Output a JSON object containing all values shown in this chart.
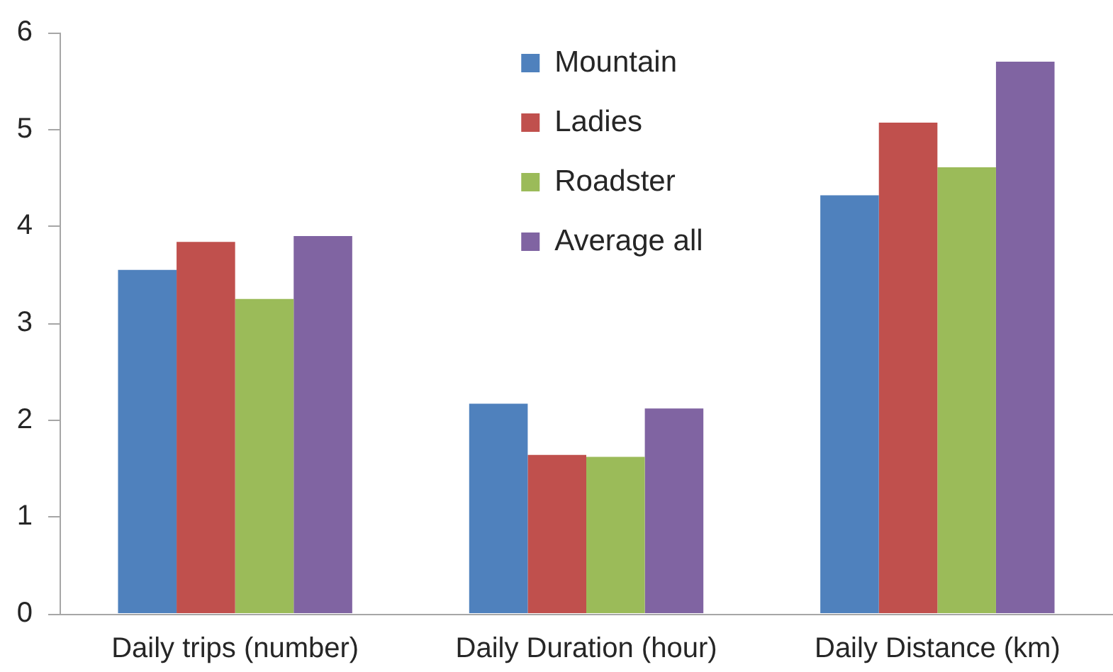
{
  "chart_data": {
    "type": "bar",
    "categories": [
      "Daily trips (number)",
      "Daily Duration (hour)",
      "Daily Distance (km)"
    ],
    "series": [
      {
        "name": "Mountain",
        "color": "#4f81bd",
        "values": [
          3.55,
          2.17,
          4.32
        ]
      },
      {
        "name": "Ladies",
        "color": "#c0504d",
        "values": [
          3.84,
          1.64,
          5.07
        ]
      },
      {
        "name": "Roadster",
        "color": "#9bbb59",
        "values": [
          3.25,
          1.62,
          4.61
        ]
      },
      {
        "name": "Average all",
        "color": "#8064a2",
        "values": [
          3.9,
          2.12,
          5.7
        ]
      }
    ],
    "ylim": [
      0,
      6
    ],
    "yticks": [
      0,
      1,
      2,
      3,
      4,
      5,
      6
    ],
    "grid": false,
    "legend": "top"
  }
}
